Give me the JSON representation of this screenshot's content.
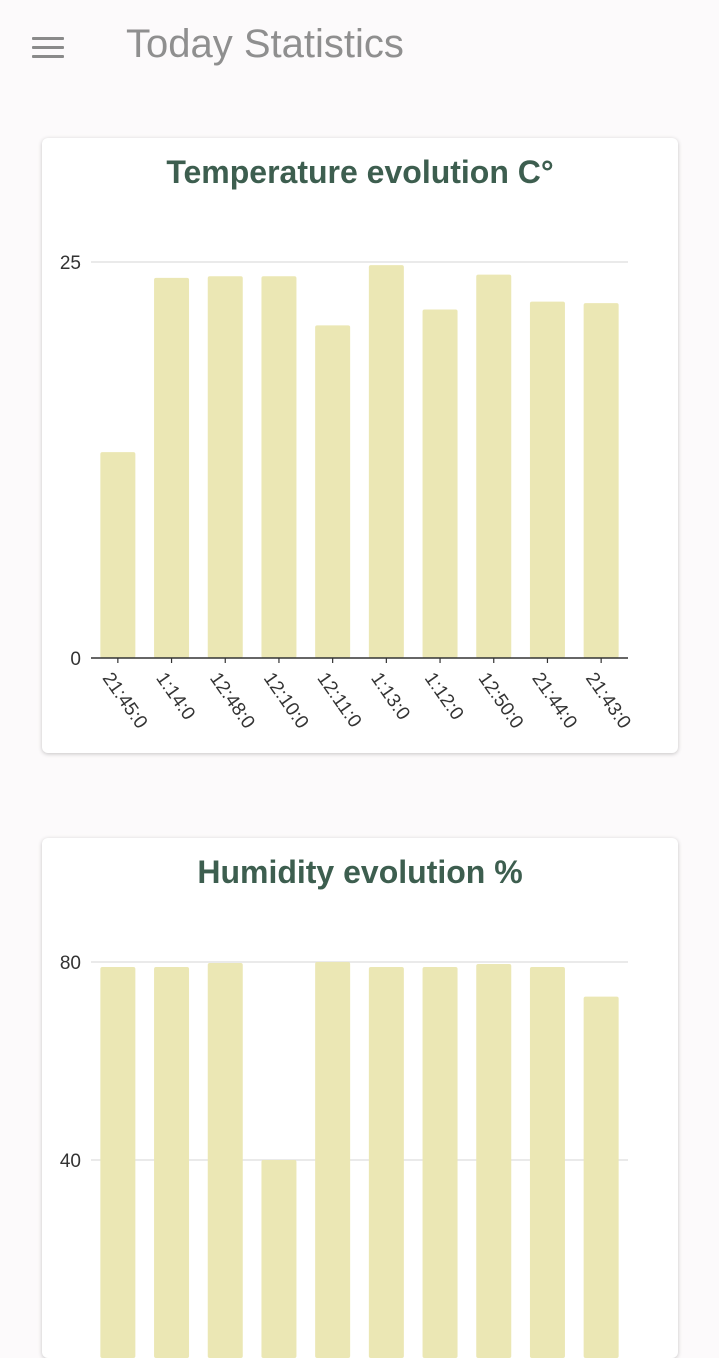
{
  "header": {
    "menu_icon": "menu-icon",
    "title": "Today Statistics"
  },
  "colors": {
    "bar": "#ebe7b4",
    "grid": "#dddddd",
    "axis": "#333333",
    "title": "#3d5e4f",
    "header_text": "#8f8f8f"
  },
  "chart_data": [
    {
      "type": "bar",
      "title": "Temperature evolution C°",
      "categories": [
        "21:45:0",
        "1:14:0",
        "12:48:0",
        "12:10:0",
        "12:11:0",
        "1:13:0",
        "1:12:0",
        "12:50:0",
        "21:44:0",
        "21:43:0"
      ],
      "values": [
        13.0,
        24.0,
        24.1,
        24.1,
        21.0,
        24.8,
        22.0,
        24.2,
        22.5,
        22.4
      ],
      "yticks": [
        "0",
        "25"
      ],
      "ylim": [
        0,
        25
      ],
      "grid": true
    },
    {
      "type": "bar",
      "title": "Humidity evolution %",
      "categories": [
        "",
        "",
        "",
        "",
        "",
        "",
        "",
        "",
        "",
        ""
      ],
      "values": [
        79,
        79,
        79.8,
        40,
        80,
        79,
        79,
        79.6,
        79,
        73
      ],
      "yticks": [
        "40",
        "80"
      ],
      "ylim": [
        0,
        80
      ],
      "grid": true
    }
  ]
}
